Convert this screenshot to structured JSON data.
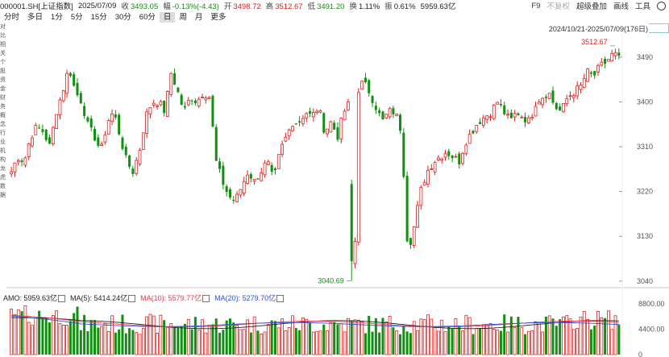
{
  "header": {
    "code": "000001.SH[上证指数]",
    "date": "2025/07/09",
    "close_label": "收",
    "close": "3493.05",
    "change_label": "幅",
    "change": "-0.13%(-4.43)",
    "open_label": "开",
    "open": "3498.72",
    "high_label": "高",
    "high": "3512.67",
    "low_label": "低",
    "low": "3491.20",
    "turnover_label": "换",
    "turnover": "1.11%",
    "amplitude_label": "振",
    "amplitude": "0.61%",
    "amount": "5959.63亿"
  },
  "toolbar": {
    "f9": "F9",
    "adjust": "不复权",
    "overlay": "超级叠加",
    "drawing": "画线",
    "tools": "工具",
    "settings_icon": "gear-icon"
  },
  "tabs": [
    {
      "label": "分时",
      "active": false
    },
    {
      "label": "多日",
      "active": false
    },
    {
      "label": "1分",
      "active": false
    },
    {
      "label": "5分",
      "active": false
    },
    {
      "label": "15分",
      "active": false
    },
    {
      "label": "30分",
      "active": false
    },
    {
      "label": "60分",
      "active": false
    },
    {
      "label": "日",
      "active": true
    },
    {
      "label": "周",
      "active": false
    },
    {
      "label": "月",
      "active": false
    },
    {
      "label": "更多",
      "active": false
    }
  ],
  "range_label": "2024/10/21-2025/07/09(176日)",
  "sidebar_text": "对比 相关 个股 资金 财务 概念 行业 机构 龙虎 数据",
  "colors": {
    "up": "#e02020",
    "down": "#109010",
    "ma5": "#222222",
    "ma10": "#e04050",
    "ma20": "#3050d0"
  },
  "chart_data": {
    "type": "candlestick",
    "price_ylim": [
      3030,
      3540
    ],
    "price_ticks": [
      "3490",
      "3400",
      "3310",
      "3220",
      "3130",
      "3040"
    ],
    "high_label": "3512.67",
    "low_label": "3040.69",
    "volume_ticks": [
      "8800.00",
      "4400.00",
      "0"
    ],
    "volume_legend": {
      "amo": "AMO: 5959.63亿",
      "ma5": "MA(5): 5414.24亿",
      "ma10": "MA(10): 5579.77亿",
      "ma20": "MA(20): 5279.70亿"
    },
    "close_anchors": [
      3260,
      3290,
      3280,
      3330,
      3350,
      3340,
      3310,
      3380,
      3420,
      3470,
      3420,
      3400,
      3350,
      3330,
      3300,
      3360,
      3380,
      3330,
      3280,
      3260,
      3300,
      3370,
      3400,
      3400,
      3380,
      3460,
      3420,
      3380,
      3410,
      3400,
      3420,
      3410,
      3280,
      3240,
      3210,
      3200,
      3230,
      3260,
      3240,
      3260,
      3280,
      3240,
      3300,
      3330,
      3360,
      3360,
      3380,
      3370,
      3390,
      3340,
      3360,
      3330,
      3380,
      3400,
      3420,
      3440,
      3420,
      3390,
      3360,
      3380,
      3380,
      3340,
      3100,
      3150,
      3220,
      3260,
      3280,
      3290,
      3300,
      3290,
      3280,
      3320,
      3340,
      3360,
      3370,
      3380,
      3400,
      3380,
      3360,
      3380,
      3370,
      3360,
      3400,
      3410,
      3420,
      3390,
      3380,
      3410,
      3420,
      3430,
      3460,
      3450,
      3470,
      3480,
      3495,
      3493
    ]
  }
}
